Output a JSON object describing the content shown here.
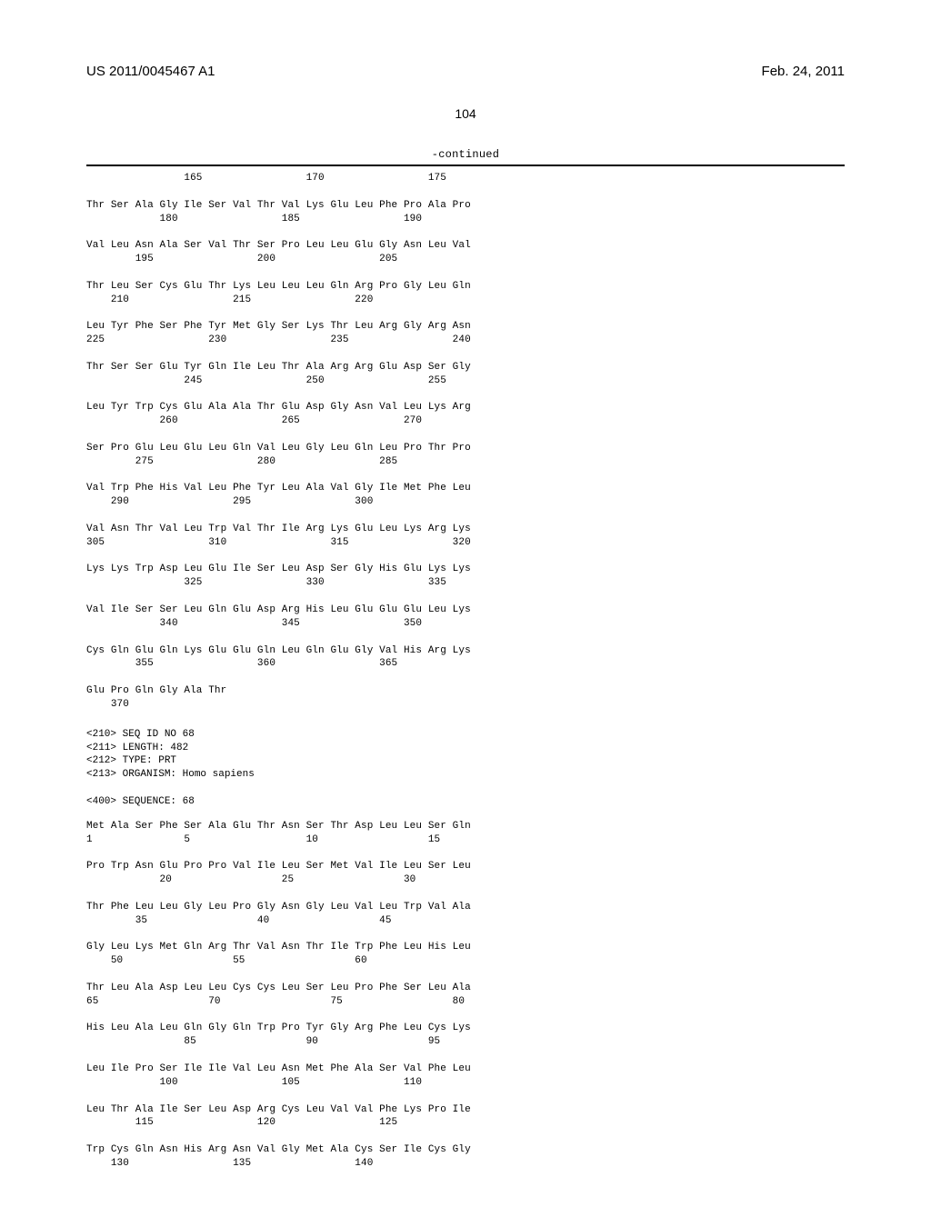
{
  "header": {
    "pub_number": "US 2011/0045467 A1",
    "date": "Feb. 24, 2011"
  },
  "page_number": "104",
  "continued_label": "-continued",
  "seq67": {
    "residue_rows": [
      "                165                 170                 175",
      "",
      "Thr Ser Ala Gly Ile Ser Val Thr Val Lys Glu Leu Phe Pro Ala Pro",
      "            180                 185                 190",
      "",
      "Val Leu Asn Ala Ser Val Thr Ser Pro Leu Leu Glu Gly Asn Leu Val",
      "        195                 200                 205",
      "",
      "Thr Leu Ser Cys Glu Thr Lys Leu Leu Leu Gln Arg Pro Gly Leu Gln",
      "    210                 215                 220",
      "",
      "Leu Tyr Phe Ser Phe Tyr Met Gly Ser Lys Thr Leu Arg Gly Arg Asn",
      "225                 230                 235                 240",
      "",
      "Thr Ser Ser Glu Tyr Gln Ile Leu Thr Ala Arg Arg Glu Asp Ser Gly",
      "                245                 250                 255",
      "",
      "Leu Tyr Trp Cys Glu Ala Ala Thr Glu Asp Gly Asn Val Leu Lys Arg",
      "            260                 265                 270",
      "",
      "Ser Pro Glu Leu Glu Leu Gln Val Leu Gly Leu Gln Leu Pro Thr Pro",
      "        275                 280                 285",
      "",
      "Val Trp Phe His Val Leu Phe Tyr Leu Ala Val Gly Ile Met Phe Leu",
      "    290                 295                 300",
      "",
      "Val Asn Thr Val Leu Trp Val Thr Ile Arg Lys Glu Leu Lys Arg Lys",
      "305                 310                 315                 320",
      "",
      "Lys Lys Trp Asp Leu Glu Ile Ser Leu Asp Ser Gly His Glu Lys Lys",
      "                325                 330                 335",
      "",
      "Val Ile Ser Ser Leu Gln Glu Asp Arg His Leu Glu Glu Glu Leu Lys",
      "            340                 345                 350",
      "",
      "Cys Gln Glu Gln Lys Glu Glu Gln Leu Gln Glu Gly Val His Arg Lys",
      "        355                 360                 365",
      "",
      "Glu Pro Gln Gly Ala Thr",
      "    370"
    ]
  },
  "seq68_meta": [
    "<210> SEQ ID NO 68",
    "<211> LENGTH: 482",
    "<212> TYPE: PRT",
    "<213> ORGANISM: Homo sapiens",
    "",
    "<400> SEQUENCE: 68"
  ],
  "seq68": {
    "residue_rows": [
      "Met Ala Ser Phe Ser Ala Glu Thr Asn Ser Thr Asp Leu Leu Ser Gln",
      "1               5                   10                  15",
      "",
      "Pro Trp Asn Glu Pro Pro Val Ile Leu Ser Met Val Ile Leu Ser Leu",
      "            20                  25                  30",
      "",
      "Thr Phe Leu Leu Gly Leu Pro Gly Asn Gly Leu Val Leu Trp Val Ala",
      "        35                  40                  45",
      "",
      "Gly Leu Lys Met Gln Arg Thr Val Asn Thr Ile Trp Phe Leu His Leu",
      "    50                  55                  60",
      "",
      "Thr Leu Ala Asp Leu Leu Cys Cys Leu Ser Leu Pro Phe Ser Leu Ala",
      "65                  70                  75                  80",
      "",
      "His Leu Ala Leu Gln Gly Gln Trp Pro Tyr Gly Arg Phe Leu Cys Lys",
      "                85                  90                  95",
      "",
      "Leu Ile Pro Ser Ile Ile Val Leu Asn Met Phe Ala Ser Val Phe Leu",
      "            100                 105                 110",
      "",
      "Leu Thr Ala Ile Ser Leu Asp Arg Cys Leu Val Val Phe Lys Pro Ile",
      "        115                 120                 125",
      "",
      "Trp Cys Gln Asn His Arg Asn Val Gly Met Ala Cys Ser Ile Cys Gly",
      "    130                 135                 140"
    ]
  }
}
